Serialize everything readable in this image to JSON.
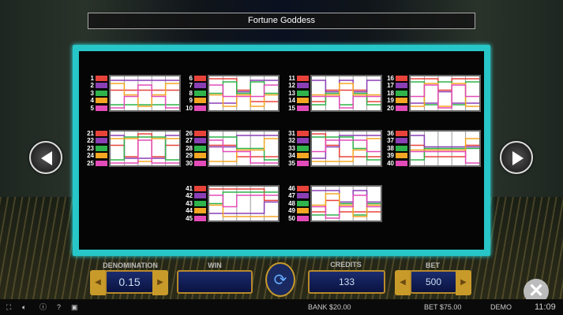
{
  "title": "Fortune Goddess",
  "palette": [
    "#e8433a",
    "#8a3fb5",
    "#2fb34a",
    "#f5a623",
    "#e34bb8"
  ],
  "paylines": [
    {
      "numbers": [
        "1",
        "2",
        "3",
        "4",
        "5"
      ],
      "paths": [
        [
          1,
          1,
          1,
          1,
          1
        ],
        [
          0,
          0,
          0,
          0,
          0
        ],
        [
          2,
          2,
          2,
          2,
          2
        ],
        [
          0,
          1,
          2,
          1,
          0
        ],
        [
          2,
          1,
          0,
          1,
          2
        ]
      ]
    },
    {
      "numbers": [
        "6",
        "7",
        "8",
        "9",
        "10"
      ],
      "paths": [
        [
          0,
          0,
          1,
          2,
          2
        ],
        [
          2,
          2,
          1,
          0,
          0
        ],
        [
          1,
          0,
          1,
          0,
          1
        ],
        [
          1,
          2,
          1,
          2,
          1
        ],
        [
          0,
          1,
          1,
          1,
          0
        ]
      ]
    },
    {
      "numbers": [
        "11",
        "12",
        "13",
        "14",
        "15"
      ],
      "paths": [
        [
          2,
          1,
          1,
          1,
          2
        ],
        [
          0,
          1,
          0,
          1,
          0
        ],
        [
          2,
          1,
          2,
          1,
          2
        ],
        [
          1,
          1,
          0,
          1,
          1
        ],
        [
          1,
          1,
          2,
          1,
          1
        ]
      ]
    },
    {
      "numbers": [
        "16",
        "17",
        "18",
        "19",
        "20"
      ],
      "paths": [
        [
          0,
          0,
          1,
          0,
          0
        ],
        [
          2,
          2,
          1,
          2,
          2
        ],
        [
          0,
          2,
          0,
          2,
          0
        ],
        [
          2,
          0,
          2,
          0,
          2
        ],
        [
          1,
          0,
          2,
          0,
          1
        ]
      ]
    },
    {
      "numbers": [
        "21",
        "22",
        "23",
        "24",
        "25"
      ],
      "paths": [
        [
          1,
          2,
          0,
          2,
          1
        ],
        [
          0,
          2,
          2,
          2,
          0
        ],
        [
          2,
          0,
          0,
          0,
          2
        ],
        [
          0,
          0,
          2,
          0,
          0
        ],
        [
          2,
          2,
          0,
          2,
          2
        ]
      ]
    },
    {
      "numbers": [
        "26",
        "27",
        "28",
        "29",
        "30"
      ],
      "paths": [
        [
          1,
          1,
          2,
          2,
          2
        ],
        [
          1,
          1,
          0,
          0,
          0
        ],
        [
          0,
          0,
          1,
          1,
          2
        ],
        [
          2,
          2,
          1,
          1,
          0
        ],
        [
          0,
          1,
          1,
          2,
          2
        ]
      ]
    },
    {
      "numbers": [
        "31",
        "32",
        "33",
        "34",
        "35"
      ],
      "paths": [
        [
          0,
          1,
          2,
          2,
          2
        ],
        [
          2,
          1,
          0,
          0,
          0
        ],
        [
          0,
          0,
          0,
          1,
          2
        ],
        [
          2,
          2,
          2,
          1,
          0
        ],
        [
          1,
          0,
          0,
          0,
          1
        ]
      ]
    },
    {
      "numbers": [
        "36",
        "37",
        "38",
        "39",
        "40"
      ],
      "paths": [
        [
          1,
          2,
          2,
          2,
          1
        ],
        [
          0,
          1,
          1,
          1,
          1
        ],
        [
          2,
          1,
          1,
          1,
          1
        ],
        [
          1,
          1,
          1,
          1,
          0
        ],
        [
          1,
          1,
          1,
          1,
          2
        ]
      ]
    },
    {
      "numbers": [
        "41",
        "42",
        "43",
        "44",
        "45"
      ],
      "paths": [
        [
          0,
          0,
          0,
          0,
          1
        ],
        [
          2,
          2,
          2,
          2,
          1
        ],
        [
          1,
          0,
          0,
          0,
          0
        ],
        [
          1,
          2,
          2,
          2,
          2
        ],
        [
          0,
          1,
          0,
          0,
          0
        ]
      ]
    },
    {
      "numbers": [
        "46",
        "47",
        "48",
        "49",
        "50"
      ],
      "paths": [
        [
          2,
          1,
          2,
          2,
          2
        ],
        [
          0,
          0,
          1,
          0,
          1
        ],
        [
          2,
          2,
          1,
          2,
          1
        ],
        [
          1,
          0,
          1,
          2,
          1
        ],
        [
          1,
          2,
          1,
          0,
          1
        ]
      ]
    }
  ],
  "controls": {
    "denomination_label": "DENOMINATION",
    "denomination": "0.15",
    "win_label": "WIN",
    "win": "",
    "credits_label": "CREDITS",
    "credits": "133",
    "bet_label": "BET",
    "bet": "500"
  },
  "status": {
    "bank": "BANK $20.00",
    "bet": "BET $75.00",
    "mode": "DEMO",
    "time": "11:09"
  }
}
